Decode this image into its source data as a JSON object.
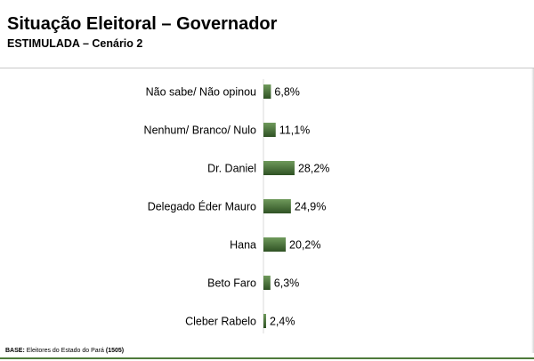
{
  "header": {
    "title": "Situação Eleitoral – Governador",
    "subtitle": "ESTIMULADA – Cenário 2"
  },
  "footnote": {
    "label": "BASE:",
    "text": "Eleitores do Estado do Pará",
    "count": "(1505)"
  },
  "colors": {
    "bar_dark": "#2f5224",
    "bar_light": "#6f9a5b",
    "footer_line": "#4e7a3a"
  },
  "chart_data": {
    "type": "bar",
    "orientation": "horizontal",
    "categories": [
      "Não sabe/ Não opinou",
      "Nenhum/ Branco/ Nulo",
      "Dr. Daniel",
      "Delegado Éder Mauro",
      "Hana",
      "Beto Faro",
      "Cleber Rabelo"
    ],
    "values": [
      6.8,
      11.1,
      28.2,
      24.9,
      20.2,
      6.3,
      2.4
    ],
    "value_labels": [
      "6,8%",
      "11,1%",
      "28,2%",
      "24,9%",
      "20,2%",
      "6,3%",
      "2,4%"
    ],
    "unit": "%",
    "title": "Situação Eleitoral – Governador",
    "xlabel": "",
    "ylabel": "",
    "grid": false,
    "legend": "none"
  }
}
